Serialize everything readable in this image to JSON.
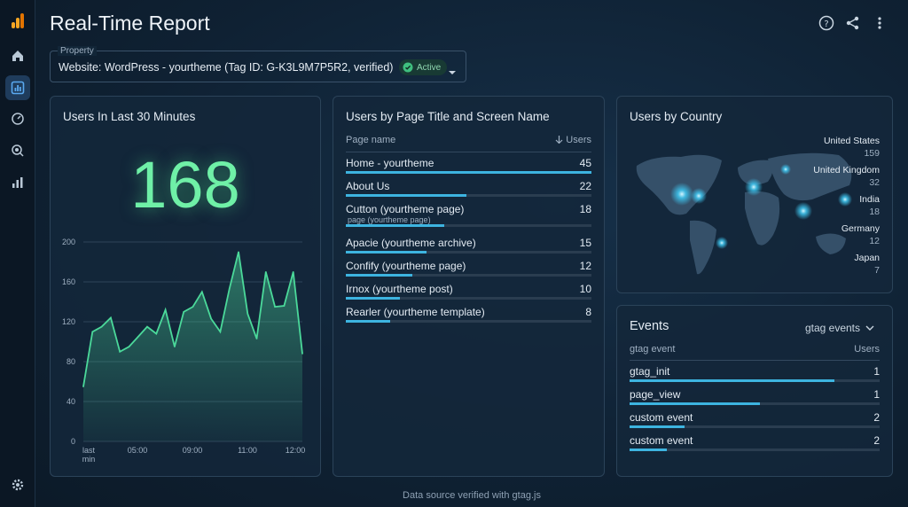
{
  "app": {
    "logo_icon": "analytics-logo-icon"
  },
  "sidebar": {
    "items": [
      {
        "icon": "home-icon",
        "active": false
      },
      {
        "icon": "reports-icon",
        "active": true
      },
      {
        "icon": "explore-icon",
        "active": false
      },
      {
        "icon": "advertising-icon",
        "active": false
      },
      {
        "icon": "bar-chart-icon",
        "active": false
      }
    ],
    "settings_icon": "gear-icon"
  },
  "header": {
    "title": "Real-Time Report",
    "icons": [
      "help-icon",
      "share-icon",
      "more-vert-icon"
    ]
  },
  "property": {
    "label": "Property",
    "value": "Website: WordPress - yourtheme (Tag ID: G-K3L9M7P5R2, verified)",
    "badge": "Active"
  },
  "users30": {
    "title": "Users In Last 30 Minutes",
    "count": "168"
  },
  "chart_data": {
    "type": "area",
    "title": "",
    "xlabel": "",
    "ylabel": "",
    "ylim": [
      0,
      200
    ],
    "yticks": [
      "200",
      "160",
      "120",
      "80",
      "40",
      "0"
    ],
    "xticks": [
      "last min",
      "05:00",
      "09:00",
      "11:00",
      "12:00"
    ],
    "series": [
      {
        "values": [
          55,
          110,
          115,
          124,
          90,
          95,
          105,
          115,
          108,
          132,
          95,
          130,
          135,
          150,
          123,
          110,
          153,
          190,
          128,
          103,
          170,
          135,
          136,
          170,
          88
        ]
      }
    ],
    "color": "#4bd99a",
    "grid": true
  },
  "pages": {
    "title": "Users by Page Title and Screen Name",
    "col_name": "Page name",
    "col_value": "Users",
    "sort_icon": "arrow-down-icon",
    "rows": [
      {
        "name": "Home - yourtheme",
        "sub": "",
        "value": "45",
        "fraction": 1.0
      },
      {
        "name": "About Us",
        "sub": "",
        "value": "22",
        "fraction": 0.49
      },
      {
        "name": "Cutton (yourtheme page)",
        "sub": "page (yourtheme page)",
        "value": "18",
        "fraction": 0.4
      },
      {
        "name": "Apacie (yourtheme archive)",
        "sub": "",
        "value": "15",
        "fraction": 0.33
      },
      {
        "name": "Confify (yourtheme page)",
        "sub": "",
        "value": "12",
        "fraction": 0.27
      },
      {
        "name": "Irnox (yourtheme post)",
        "sub": "",
        "value": "10",
        "fraction": 0.22
      },
      {
        "name": "Rearler (yourtheme template)",
        "sub": "",
        "value": "8",
        "fraction": 0.18
      }
    ]
  },
  "countries": {
    "title": "Users by Country",
    "items": [
      {
        "name": "United States",
        "value": "159"
      },
      {
        "name": "United Kingdom",
        "value": "32"
      },
      {
        "name": "India",
        "value": "18"
      },
      {
        "name": "Germany",
        "value": "12"
      },
      {
        "name": "Japan",
        "value": "7"
      }
    ]
  },
  "events": {
    "title": "Events",
    "dropdown": "gtag events",
    "col_name": "gtag event",
    "col_value": "Users",
    "rows": [
      {
        "name": "gtag_init",
        "value": "1",
        "fraction": 0.82
      },
      {
        "name": "page_view",
        "value": "1",
        "fraction": 0.52
      },
      {
        "name": "custom event",
        "value": "2",
        "fraction": 0.22
      },
      {
        "name": "custom event",
        "value": "2",
        "fraction": 0.15
      }
    ]
  },
  "footer": {
    "text": "Data source verified with gtag.js"
  }
}
